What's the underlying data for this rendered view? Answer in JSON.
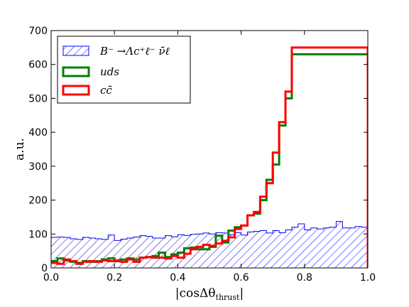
{
  "chart_data": {
    "type": "histogram",
    "xlabel": "|cosΔθ",
    "xlabel_sub": "thrust",
    "xlabel_end": "|",
    "ylabel": "a.u.",
    "xlim": [
      0.0,
      1.0
    ],
    "ylim": [
      0,
      700
    ],
    "xticks": [
      "0.0",
      "0.2",
      "0.4",
      "0.6",
      "0.8",
      "1.0"
    ],
    "yticks": [
      "0",
      "100",
      "200",
      "300",
      "400",
      "500",
      "600",
      "700"
    ],
    "legend_position": "top-left",
    "bin_edges_start": 0.0,
    "bin_width": 0.02,
    "series": [
      {
        "name": "B⁻ → Λc⁺ ℓ⁻ ν̄ℓ",
        "style": "hatched",
        "color": "#0000ff",
        "values": [
          90,
          91,
          90,
          86,
          84,
          90,
          88,
          86,
          84,
          97,
          81,
          85,
          88,
          91,
          95,
          93,
          88,
          88,
          95,
          92,
          98,
          96,
          99,
          100,
          103,
          100,
          104,
          103,
          98,
          104,
          97,
          106,
          108,
          110,
          103,
          110,
          104,
          112,
          120,
          130,
          112,
          118,
          115,
          118,
          120,
          137,
          118,
          118,
          122,
          120,
          130
        ]
      },
      {
        "name": "uds",
        "style": "line",
        "color": "#008000",
        "values": [
          20,
          28,
          22,
          18,
          15,
          20,
          18,
          20,
          25,
          28,
          20,
          25,
          28,
          25,
          30,
          32,
          35,
          45,
          32,
          40,
          45,
          58,
          60,
          55,
          55,
          62,
          95,
          75,
          110,
          120,
          125,
          155,
          160,
          200,
          260,
          305,
          420,
          500,
          630
        ]
      },
      {
        "name": "cc̄",
        "style": "line",
        "color": "#ff0000",
        "values": [
          15,
          12,
          25,
          20,
          12,
          18,
          20,
          18,
          22,
          20,
          22,
          18,
          25,
          18,
          30,
          32,
          30,
          30,
          28,
          35,
          30,
          42,
          55,
          62,
          68,
          65,
          72,
          80,
          90,
          115,
          125,
          155,
          165,
          210,
          250,
          340,
          430,
          520,
          650
        ]
      }
    ],
    "legend": [
      {
        "label_main": "B⁻ →Λc⁺ℓ⁻ ν̄ℓ",
        "style": "hatched",
        "color": "#0000ff"
      },
      {
        "label_main": "uds",
        "style": "line",
        "color": "#008000"
      },
      {
        "label_main": "cc̄",
        "style": "line",
        "color": "#ff0000"
      }
    ]
  }
}
